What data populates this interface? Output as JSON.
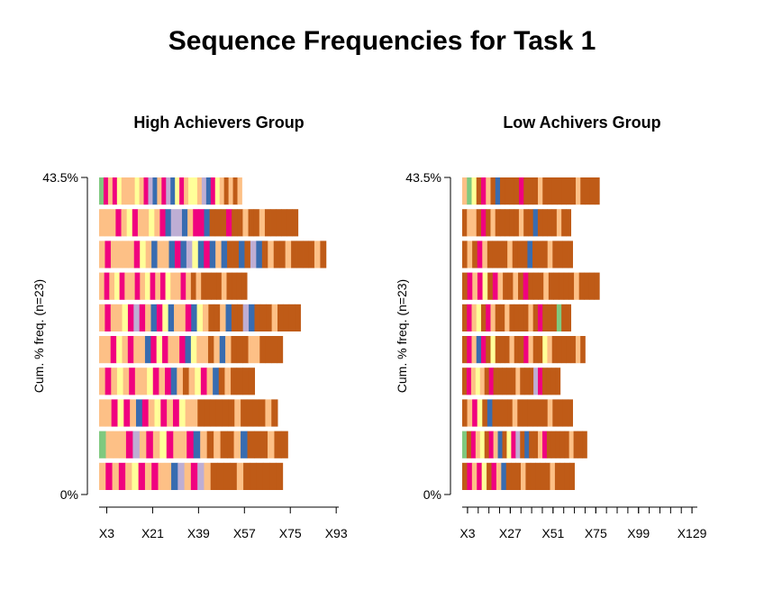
{
  "title": "Sequence Frequencies for Task 1",
  "state_colors": {
    "A": "#7FC97F",
    "B": "#BEAED4",
    "C": "#FDC086",
    "D": "#FFFF99",
    "E": "#386CB0",
    "F": "#F0027F",
    "G": "#BF5B17"
  },
  "chart_data": [
    {
      "type": "sequence-frequency",
      "title": "High Achievers Group",
      "ylabel": "Cum. % freq. (n=23)",
      "yticks": [
        "0%",
        "43.5%"
      ],
      "ylim": [
        0,
        43.5
      ],
      "xticks": [
        "X3",
        "X21",
        "X39",
        "X57",
        "X75",
        "X93"
      ],
      "xtick_positions": [
        3,
        21,
        39,
        57,
        75,
        93
      ],
      "xlim": [
        0,
        94
      ],
      "minor_ticks": false,
      "sequences": [
        {
          "length": 56,
          "seq": "AFCFDCCCDCFBECFBEDFCDDCBEFDCGCGC"
        },
        {
          "length": 78,
          "seq": "CCCFCDFCCDCFEBBECFFEGGGFGGCGGCGGGGGG"
        },
        {
          "length": 89,
          "seq": "CFCCCCFDCECCEFEBDEFECEGGEGBEGCGGCGGGGCG"
        },
        {
          "length": 58,
          "seq": "CFCDFCCFCDFCFDCCFCGCGGGGCGGGG"
        },
        {
          "length": 79,
          "seq": "CFCCDFBFCEFDECCFEDCGGCEGGBEGGGCGGGG"
        },
        {
          "length": 72,
          "seq": "CCFDCFCCEFDFCCFEDCCGCECGGGCCGGGG"
        },
        {
          "length": 61,
          "seq": "CFCDCFCCDFCFECGCDFCEGCGGGG"
        },
        {
          "length": 70,
          "seq": "CCFDFCEFCDFCFDCCGGGGGGCGGGGCG"
        },
        {
          "length": 74,
          "seq": "ACCCFBCFCDFCCFECGCGGCEGGGCGG"
        },
        {
          "length": 72,
          "seq": "CFCFCDFCFCCEBCFBCGGGGCGGGGGG"
        }
      ]
    },
    {
      "type": "sequence-frequency",
      "title": "Low Achivers Group",
      "ylabel": "Cum. % freq. (n=23)",
      "yticks": [
        "0%",
        "43.5%"
      ],
      "ylim": [
        0,
        43.5
      ],
      "xticks": [
        "X3",
        "X27",
        "X51",
        "X75",
        "X99",
        "X129"
      ],
      "xtick_positions": [
        3,
        27,
        51,
        75,
        99,
        129
      ],
      "xlim": [
        0,
        132
      ],
      "minor_ticks": true,
      "sequences": [
        {
          "length": 77,
          "seq": "CADGFCGEGGGGFGGGCGGGGGGGCGGGG"
        },
        {
          "length": 61,
          "seq": "GCCGFGCGGGGGCGGEGGGGCGG"
        },
        {
          "length": 62,
          "seq": "GCGFCGGGGCGGGEGGGCGGGG"
        },
        {
          "length": 77,
          "seq": "GFCFDGFCGGCGFGGGCGGGGGCGGGG"
        },
        {
          "length": 61,
          "seq": "GFCDGFCGGCGGGGCGFGGGAGG"
        },
        {
          "length": 69,
          "seq": "GFCEFGDGGGCGGFCGGDCGGGGGCG"
        },
        {
          "length": 55,
          "seq": "GFCDCGFGGGGGCGGGBFGGGG"
        },
        {
          "length": 62,
          "seq": "GCFDGEGGGGCGGGGGGCGGGG"
        },
        {
          "length": 70,
          "seq": "AGFCDGFCEGDFBGEGGCFGGGGGCGGG"
        },
        {
          "length": 63,
          "seq": "GFCFDGFCEGGGCGGGGGCGGGG"
        }
      ]
    }
  ]
}
